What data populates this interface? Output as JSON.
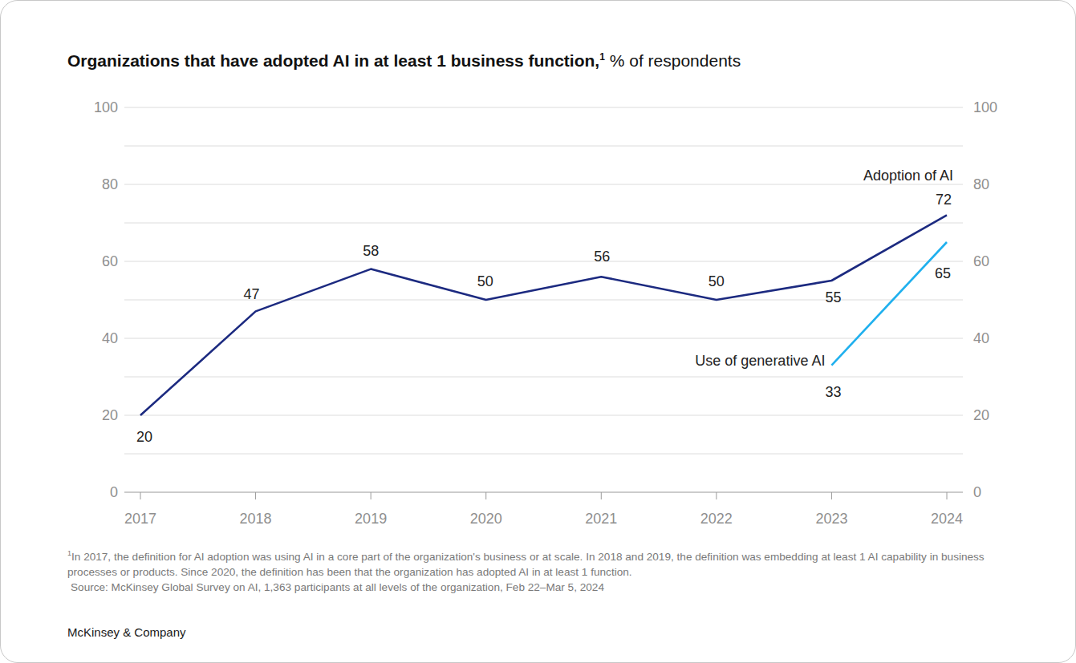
{
  "chart_data": {
    "type": "line",
    "title": "Organizations that have adopted AI in at least 1 business function,",
    "title_footnote_mark": "1",
    "subtitle": "% of respondents",
    "categories": [
      "2017",
      "2018",
      "2019",
      "2020",
      "2021",
      "2022",
      "2023",
      "2024"
    ],
    "series": [
      {
        "name": "Adoption of AI",
        "color": "#1c2a80",
        "values": [
          20,
          47,
          58,
          50,
          56,
          50,
          55,
          72
        ]
      },
      {
        "name": "Use of generative AI",
        "color": "#1fb0ee",
        "values": [
          null,
          null,
          null,
          null,
          null,
          null,
          33,
          65
        ]
      }
    ],
    "ylim": [
      0,
      100
    ],
    "yticks": [
      0,
      20,
      40,
      60,
      80,
      100
    ],
    "minor_yticks": [
      10,
      30,
      50,
      70,
      90
    ],
    "y2lim": [
      0,
      100
    ],
    "y2ticks": [
      0,
      20,
      40,
      60,
      80,
      100
    ],
    "grid": true,
    "data_labels": true,
    "footnote": {
      "mark": "1",
      "text": "In 2017, the definition for AI adoption was using AI in a core part of the organization's business or at scale. In 2018 and 2019, the definition was embedding at least 1 AI capability in business processes or products. Since 2020, the definition has been that the organization has adopted AI in at least 1 function."
    },
    "source": "Source: McKinsey Global Survey on AI, 1,363 participants at all levels of the organization, Feb 22–Mar 5, 2024",
    "brand": "McKinsey & Company"
  }
}
